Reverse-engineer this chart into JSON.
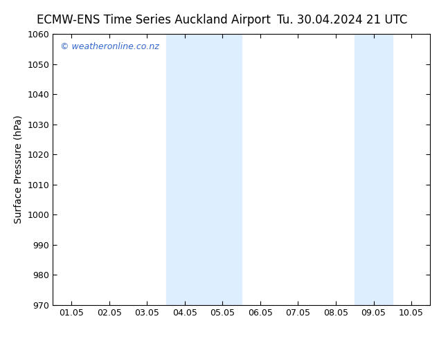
{
  "title_left": "ECMW-ENS Time Series Auckland Airport",
  "title_right": "Tu. 30.04.2024 21 UTC",
  "ylabel": "Surface Pressure (hPa)",
  "ylim": [
    970,
    1060
  ],
  "yticks": [
    970,
    980,
    990,
    1000,
    1010,
    1020,
    1030,
    1040,
    1050,
    1060
  ],
  "xtick_labels": [
    "01.05",
    "02.05",
    "03.05",
    "04.05",
    "05.05",
    "06.05",
    "07.05",
    "08.05",
    "09.05",
    "10.05"
  ],
  "shaded_regions": [
    {
      "xmin": 3,
      "xmax": 5
    },
    {
      "xmin": 8,
      "xmax": 9
    }
  ],
  "shade_color": "#ddeeff",
  "watermark_text": "© weatheronline.co.nz",
  "watermark_color": "#3366cc",
  "background_color": "#ffffff",
  "plot_bg_color": "#ffffff",
  "title_fontsize": 12,
  "tick_fontsize": 9,
  "ylabel_fontsize": 10,
  "spine_color": "#000000"
}
